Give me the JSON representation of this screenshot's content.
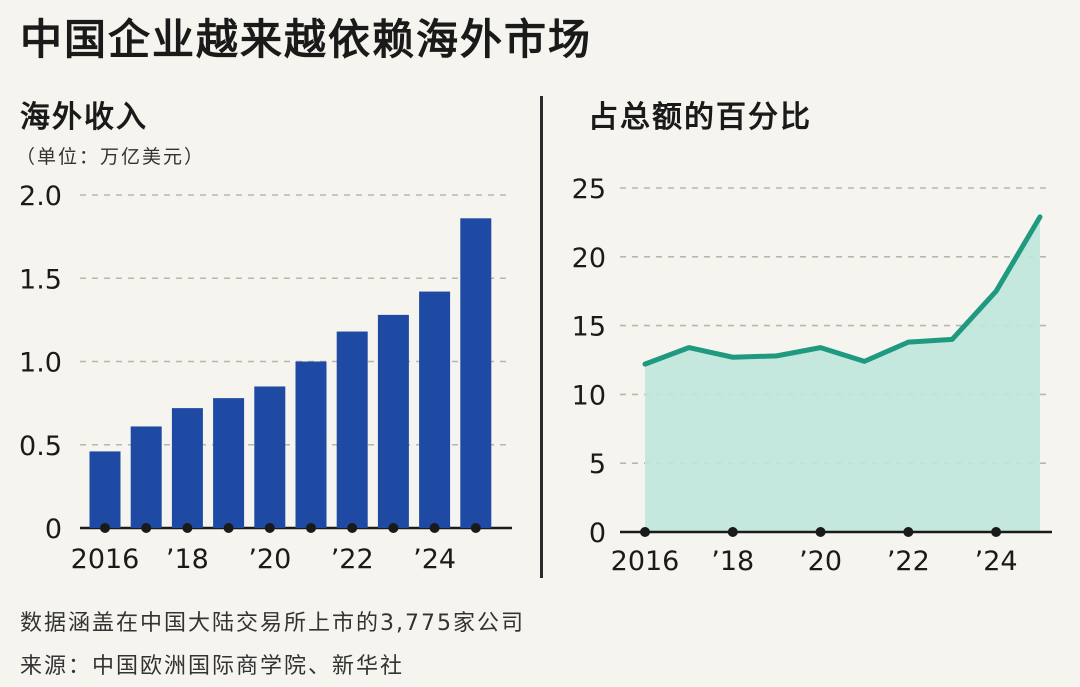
{
  "title": "中国企业越来越依赖海外市场",
  "footnote": "数据涵盖在中国大陆交易所上市的3,775家公司",
  "source": "来源：中国欧洲国际商学院、新华社",
  "colors": {
    "bar": "#1f4aa3",
    "line": "#1f9a80",
    "area": "#bfe7dc"
  },
  "chart_data": [
    {
      "type": "bar",
      "title": "海外收入",
      "unit": "（单位：万亿美元）",
      "x": [
        2016,
        2017,
        2018,
        2019,
        2020,
        2021,
        2022,
        2023,
        2024,
        2025
      ],
      "values": [
        0.46,
        0.61,
        0.72,
        0.78,
        0.85,
        1.0,
        1.18,
        1.28,
        1.42,
        1.86
      ],
      "ylim": [
        0,
        2.0
      ],
      "yticks": [
        0,
        0.5,
        1.0,
        1.5,
        2.0
      ],
      "ytick_labels": [
        "0",
        "0.5",
        "1.0",
        "1.5",
        "2.0"
      ],
      "xtick_labels": [
        {
          "x": 2016,
          "label": "2016"
        },
        {
          "x": 2018,
          "label": "’18"
        },
        {
          "x": 2020,
          "label": "’20"
        },
        {
          "x": 2022,
          "label": "’22"
        },
        {
          "x": 2024,
          "label": "’24"
        }
      ],
      "grid": true
    },
    {
      "type": "area",
      "title": "占总额的百分比",
      "x": [
        2016,
        2017,
        2018,
        2019,
        2020,
        2021,
        2022,
        2023,
        2024,
        2025
      ],
      "values": [
        12.2,
        13.4,
        12.7,
        12.8,
        13.4,
        12.4,
        13.8,
        14.0,
        17.5,
        22.9
      ],
      "ylim": [
        0,
        25
      ],
      "yticks": [
        0,
        5,
        10,
        15,
        20,
        25
      ],
      "ytick_labels": [
        "0",
        "5",
        "10",
        "15",
        "20",
        "25"
      ],
      "xtick_labels": [
        {
          "x": 2016,
          "label": "2016"
        },
        {
          "x": 2018,
          "label": "’18"
        },
        {
          "x": 2020,
          "label": "’20"
        },
        {
          "x": 2022,
          "label": "’22"
        },
        {
          "x": 2024,
          "label": "’24"
        }
      ],
      "grid": true
    }
  ]
}
